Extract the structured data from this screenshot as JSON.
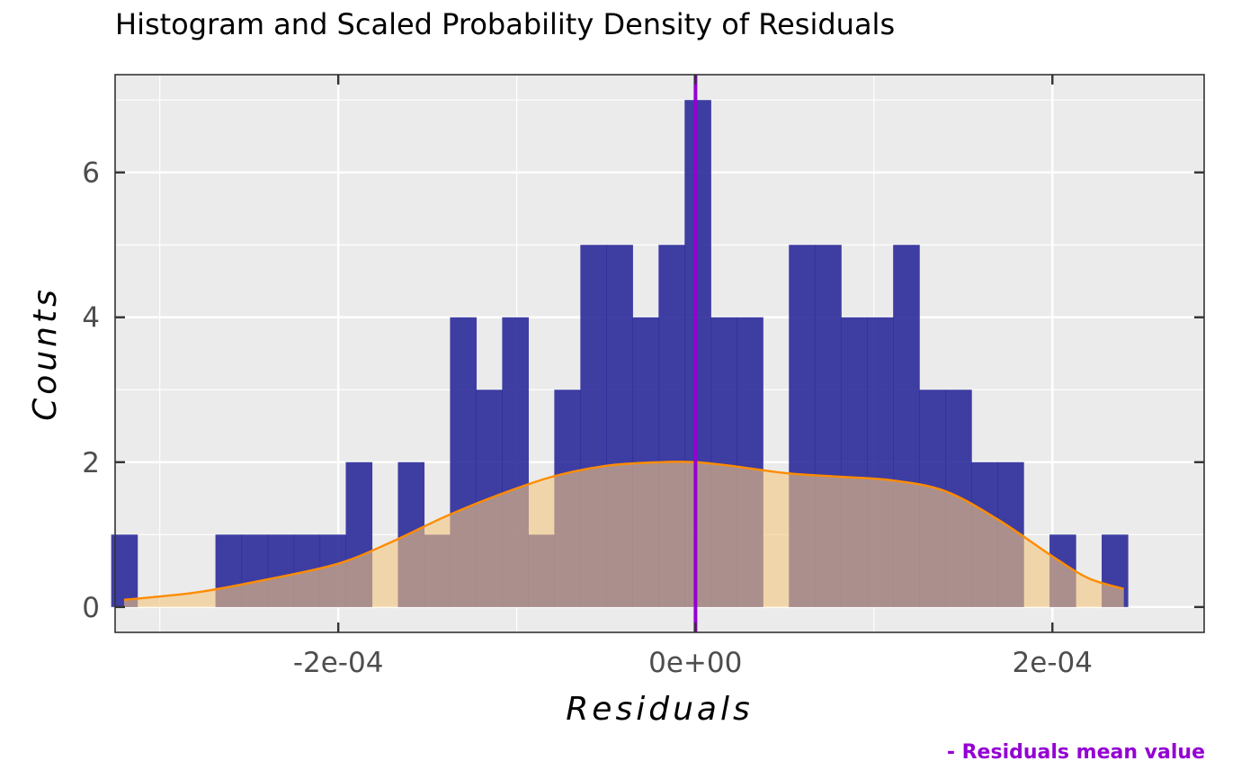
{
  "chart_data": {
    "type": "bar",
    "title": "Histogram and Scaled Probability Density of Residuals",
    "xlabel": "Residuals",
    "ylabel": "Counts",
    "caption": "- Residuals mean value",
    "xlim": [
      -0.000325,
      0.000285
    ],
    "ylim": [
      -0.35,
      7.35
    ],
    "x_ticks": [
      {
        "value": -0.0002,
        "label": "-2e-04"
      },
      {
        "value": 0,
        "label": "0e+00"
      },
      {
        "value": 0.0002,
        "label": "2e-04"
      }
    ],
    "y_ticks": [
      {
        "value": 0,
        "label": "0"
      },
      {
        "value": 2,
        "label": "2"
      },
      {
        "value": 4,
        "label": "4"
      },
      {
        "value": 6,
        "label": "6"
      }
    ],
    "grid": true,
    "bin_width": 1.46e-05,
    "bin_start": -0.0003272,
    "counts": [
      1,
      0,
      0,
      0,
      1,
      1,
      1,
      1,
      1,
      2,
      0,
      2,
      1,
      4,
      3,
      4,
      1,
      3,
      5,
      5,
      4,
      5,
      7,
      4,
      4,
      0,
      5,
      5,
      4,
      4,
      5,
      3,
      3,
      2,
      2,
      0,
      1,
      0,
      1
    ],
    "mean_value": 1e-07,
    "density_scaled": {
      "x": [
        -0.00032,
        -0.00028,
        -0.00024,
        -0.0002,
        -0.00017,
        -0.00014,
        -0.00011,
        -8e-05,
        -5e-05,
        -2e-05,
        0.0,
        2e-05,
        5e-05,
        8e-05,
        0.00011,
        0.00014,
        0.00017,
        0.0002,
        0.00022,
        0.00024
      ],
      "y": [
        0.1,
        0.2,
        0.38,
        0.6,
        0.9,
        1.25,
        1.55,
        1.8,
        1.95,
        2.0,
        2.0,
        1.95,
        1.85,
        1.8,
        1.75,
        1.6,
        1.2,
        0.7,
        0.4,
        0.25
      ]
    },
    "colors": {
      "bars": "#2b2a9a",
      "density_line": "#ff8c00",
      "density_fill": "#f5c77e",
      "mean_line": "#9400d3",
      "panel": "#ebebeb",
      "grid": "#ffffff"
    }
  }
}
